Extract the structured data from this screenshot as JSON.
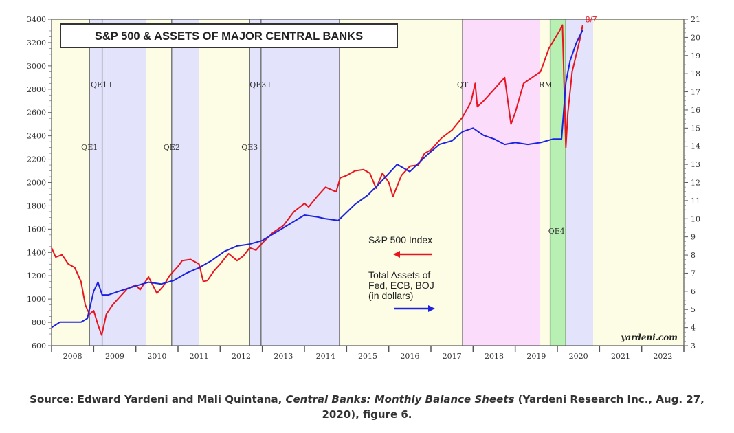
{
  "chart_data": {
    "type": "line",
    "title": "S&P 500 & ASSETS OF MAJOR CENTRAL BANKS",
    "watermark": "yardeni.com",
    "x_tick_labels": [
      "2008",
      "2009",
      "2010",
      "2011",
      "2012",
      "2013",
      "2014",
      "2015",
      "2016",
      "2017",
      "2018",
      "2019",
      "2020",
      "2021",
      "2022"
    ],
    "xlim": [
      2008.0,
      2023.0
    ],
    "left_axis": {
      "ylim": [
        600,
        3400
      ],
      "ticks": [
        600,
        800,
        1000,
        1200,
        1400,
        1600,
        1800,
        2000,
        2200,
        2400,
        2600,
        2800,
        3000,
        3200,
        3400
      ]
    },
    "right_axis": {
      "ylim": [
        3,
        21
      ],
      "ticks": [
        3,
        4,
        5,
        6,
        7,
        8,
        9,
        10,
        11,
        12,
        13,
        14,
        15,
        16,
        17,
        18,
        19,
        20,
        21
      ]
    },
    "shaded_periods": [
      {
        "start": 2008.0,
        "end": 2008.9,
        "color": "#fdfde6",
        "label": ""
      },
      {
        "start": 2008.9,
        "end": 2009.3,
        "color": "#e3e3fb",
        "label": "QE1"
      },
      {
        "start": 2009.3,
        "end": 2010.25,
        "color": "#e3e3fb",
        "label": "QE1+"
      },
      {
        "start": 2010.25,
        "end": 2010.85,
        "color": "#fdfde6",
        "label": ""
      },
      {
        "start": 2010.85,
        "end": 2011.5,
        "color": "#e3e3fb",
        "label": "QE2"
      },
      {
        "start": 2011.5,
        "end": 2012.7,
        "color": "#fdfde6",
        "label": ""
      },
      {
        "start": 2012.7,
        "end": 2012.97,
        "color": "#e3e3fb",
        "label": "QE3"
      },
      {
        "start": 2012.97,
        "end": 2014.83,
        "color": "#e3e3fb",
        "label": "QE3+"
      },
      {
        "start": 2014.83,
        "end": 2017.75,
        "color": "#fdfde6",
        "label": ""
      },
      {
        "start": 2017.75,
        "end": 2019.58,
        "color": "#fbdcfb",
        "label": "QT"
      },
      {
        "start": 2019.58,
        "end": 2019.83,
        "color": "#fdfde6",
        "label": "RM"
      },
      {
        "start": 2019.83,
        "end": 2020.2,
        "color": "#b7f0b2",
        "label": "QE4"
      },
      {
        "start": 2020.2,
        "end": 2020.85,
        "color": "#e3e3fb",
        "label": ""
      },
      {
        "start": 2020.85,
        "end": 2023.0,
        "color": "#fdfde6",
        "label": ""
      }
    ],
    "event_lines": [
      2008.9,
      2009.2,
      2010.85,
      2012.7,
      2012.97,
      2014.83,
      2017.75,
      2019.83,
      2020.2
    ],
    "end_annotation": {
      "text": "8/7",
      "x": 2020.6,
      "y": 3350
    },
    "series": [
      {
        "name": "S&P 500 Index",
        "axis": "left",
        "color": "#e8141e",
        "x": [
          2008.0,
          2008.1,
          2008.25,
          2008.4,
          2008.55,
          2008.7,
          2008.8,
          2008.9,
          2009.0,
          2009.1,
          2009.19,
          2009.3,
          2009.45,
          2009.6,
          2009.8,
          2010.0,
          2010.1,
          2010.3,
          2010.5,
          2010.65,
          2010.8,
          2011.0,
          2011.1,
          2011.3,
          2011.5,
          2011.6,
          2011.7,
          2011.85,
          2012.0,
          2012.2,
          2012.4,
          2012.55,
          2012.7,
          2012.85,
          2013.0,
          2013.25,
          2013.5,
          2013.75,
          2014.0,
          2014.1,
          2014.3,
          2014.5,
          2014.75,
          2014.85,
          2015.0,
          2015.2,
          2015.4,
          2015.55,
          2015.7,
          2015.85,
          2016.0,
          2016.1,
          2016.3,
          2016.5,
          2016.7,
          2016.85,
          2017.0,
          2017.25,
          2017.5,
          2017.75,
          2017.95,
          2018.05,
          2018.1,
          2018.25,
          2018.5,
          2018.75,
          2018.9,
          2019.0,
          2019.2,
          2019.4,
          2019.6,
          2019.8,
          2020.05,
          2020.12,
          2020.2,
          2020.25,
          2020.35,
          2020.45,
          2020.55,
          2020.6
        ],
        "values": [
          1440,
          1360,
          1380,
          1300,
          1270,
          1150,
          950,
          870,
          900,
          780,
          690,
          870,
          950,
          1010,
          1090,
          1120,
          1080,
          1190,
          1050,
          1110,
          1200,
          1280,
          1330,
          1340,
          1300,
          1150,
          1160,
          1240,
          1300,
          1390,
          1330,
          1370,
          1440,
          1420,
          1480,
          1570,
          1630,
          1750,
          1820,
          1790,
          1880,
          1960,
          1920,
          2040,
          2060,
          2100,
          2110,
          2080,
          1950,
          2080,
          2000,
          1880,
          2060,
          2140,
          2150,
          2250,
          2280,
          2380,
          2450,
          2560,
          2690,
          2850,
          2650,
          2700,
          2800,
          2900,
          2500,
          2600,
          2850,
          2900,
          2950,
          3150,
          3300,
          3350,
          2300,
          2600,
          2950,
          3100,
          3250,
          3350
        ]
      },
      {
        "name": "Total Assets of Fed, ECB, BOJ (in dollars)",
        "axis": "right",
        "color": "#1c22e0",
        "x": [
          2008.0,
          2008.2,
          2008.5,
          2008.7,
          2008.85,
          2009.0,
          2009.1,
          2009.2,
          2009.35,
          2009.6,
          2010.0,
          2010.3,
          2010.6,
          2010.9,
          2011.2,
          2011.5,
          2011.8,
          2012.1,
          2012.4,
          2012.7,
          2013.0,
          2013.5,
          2014.0,
          2014.3,
          2014.5,
          2014.8,
          2015.2,
          2015.5,
          2015.8,
          2016.2,
          2016.5,
          2016.9,
          2017.2,
          2017.5,
          2017.75,
          2018.0,
          2018.25,
          2018.5,
          2018.75,
          2019.0,
          2019.3,
          2019.6,
          2019.9,
          2020.1,
          2020.2,
          2020.3,
          2020.45,
          2020.6
        ],
        "values": [
          4.0,
          4.3,
          4.3,
          4.3,
          4.5,
          6.0,
          6.5,
          5.8,
          5.8,
          6.0,
          6.3,
          6.5,
          6.4,
          6.6,
          7.0,
          7.3,
          7.7,
          8.2,
          8.5,
          8.6,
          8.8,
          9.5,
          10.2,
          10.1,
          10.0,
          9.9,
          10.8,
          11.3,
          12.0,
          13.0,
          12.6,
          13.5,
          14.1,
          14.3,
          14.8,
          15.0,
          14.6,
          14.4,
          14.1,
          14.2,
          14.1,
          14.2,
          14.4,
          14.4,
          17.5,
          18.7,
          19.7,
          20.4
        ]
      }
    ],
    "legend": {
      "sp500_label": "S&P 500 Index",
      "assets_label": "Total Assets of\nFed, ECB, BOJ\n(in dollars)"
    }
  },
  "caption": {
    "prefix": "Source: Edward Yardeni and Mali Quintana, ",
    "title_italic": "Central Banks: Monthly Balance Sheets",
    "suffix": " (Yardeni Research Inc., Aug. 27, 2020), figure 6."
  }
}
